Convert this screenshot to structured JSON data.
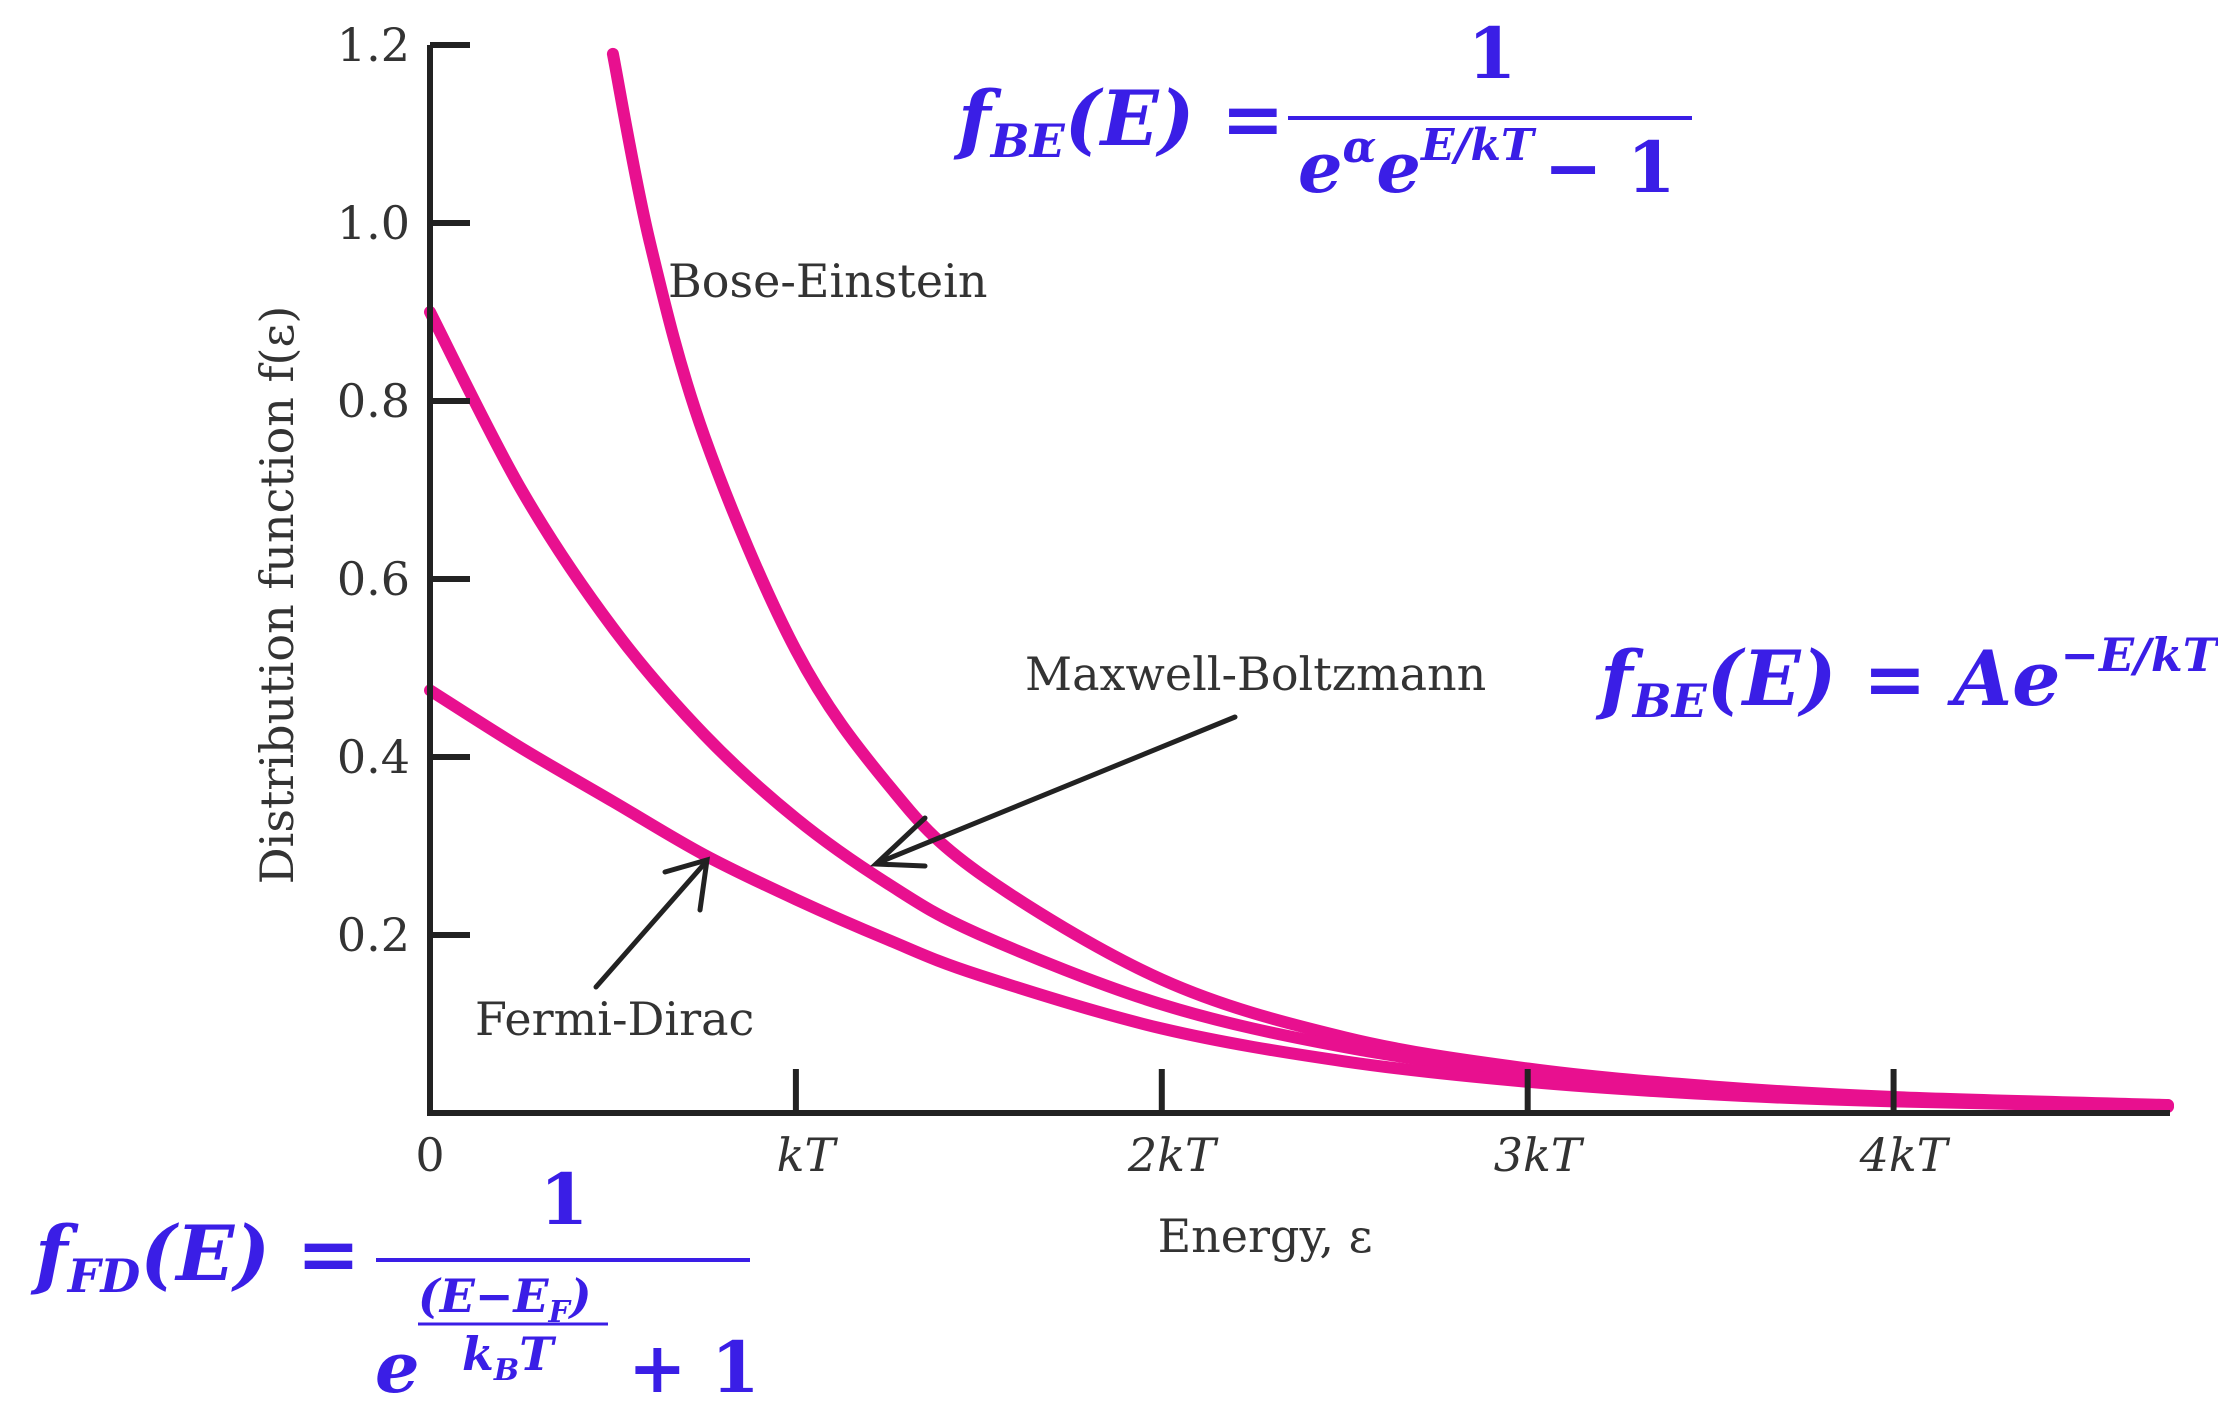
{
  "chart_data": {
    "type": "line",
    "xlabel": "Energy, ε",
    "ylabel": "Distribution function f(ε)",
    "xlim": [
      0,
      4.75
    ],
    "ylim": [
      0,
      1.2
    ],
    "x_ticks": [
      {
        "value": 0,
        "label": "0"
      },
      {
        "value": 1,
        "label": "kT"
      },
      {
        "value": 2,
        "label": "2kT"
      },
      {
        "value": 3,
        "label": "3kT"
      },
      {
        "value": 4,
        "label": "4kT"
      }
    ],
    "y_ticks": [
      {
        "value": 0.2,
        "label": "0.2"
      },
      {
        "value": 0.4,
        "label": "0.4"
      },
      {
        "value": 0.6,
        "label": "0.6"
      },
      {
        "value": 0.8,
        "label": "0.8"
      },
      {
        "value": 1.0,
        "label": "1.0"
      },
      {
        "value": 1.2,
        "label": "1.2"
      }
    ],
    "line_color": "#e8108f",
    "series": [
      {
        "name": "Bose-Einstein",
        "x": [
          0.5,
          0.6,
          0.75,
          1.0,
          1.25,
          1.5,
          2.0,
          2.5,
          3.0,
          3.5,
          4.0,
          4.75
        ],
        "y": [
          1.19,
          0.98,
          0.76,
          0.52,
          0.37,
          0.27,
          0.15,
          0.085,
          0.05,
          0.03,
          0.018,
          0.009
        ]
      },
      {
        "name": "Maxwell-Boltzmann",
        "x": [
          0,
          0.25,
          0.5,
          0.75,
          1.0,
          1.25,
          1.5,
          2.0,
          2.5,
          3.0,
          3.5,
          4.0,
          4.75
        ],
        "y": [
          0.9,
          0.7,
          0.545,
          0.425,
          0.331,
          0.258,
          0.201,
          0.122,
          0.074,
          0.045,
          0.027,
          0.016,
          0.008
        ]
      },
      {
        "name": "Fermi-Dirac",
        "x": [
          0,
          0.25,
          0.5,
          0.75,
          1.0,
          1.25,
          1.5,
          2.0,
          2.5,
          3.0,
          3.5,
          4.0,
          4.75
        ],
        "y": [
          0.475,
          0.41,
          0.35,
          0.29,
          0.24,
          0.195,
          0.155,
          0.095,
          0.058,
          0.035,
          0.021,
          0.013,
          0.007
        ]
      }
    ],
    "annotations": {
      "bose_einstein": "Bose-Einstein",
      "maxwell_boltzmann": "Maxwell-Boltzmann",
      "fermi_dirac": "Fermi-Dirac"
    }
  },
  "equations": {
    "be": {
      "lhs_f": "f",
      "lhs_sub": "BE",
      "lhs_rest": "(E) =",
      "numerator": "1",
      "den_e1": "e",
      "den_alpha": "α",
      "den_e2": "e",
      "den_exp": "E/kT",
      "den_rest": "− 1"
    },
    "mb": {
      "lhs_f": "f",
      "lhs_sub": "BE",
      "lhs_rest": "(E) = Ae",
      "exp": "−E/kT"
    },
    "fd": {
      "lhs_f": "f",
      "lhs_sub": "FD",
      "lhs_rest": "(E) =",
      "numerator": "1",
      "den_e": "e",
      "exp_num": "(E−E",
      "exp_num_sub": "F",
      "exp_num_close": ")",
      "exp_den": "k",
      "exp_den_sub": "B",
      "exp_den_rest": "T",
      "den_rest": "+ 1"
    }
  }
}
